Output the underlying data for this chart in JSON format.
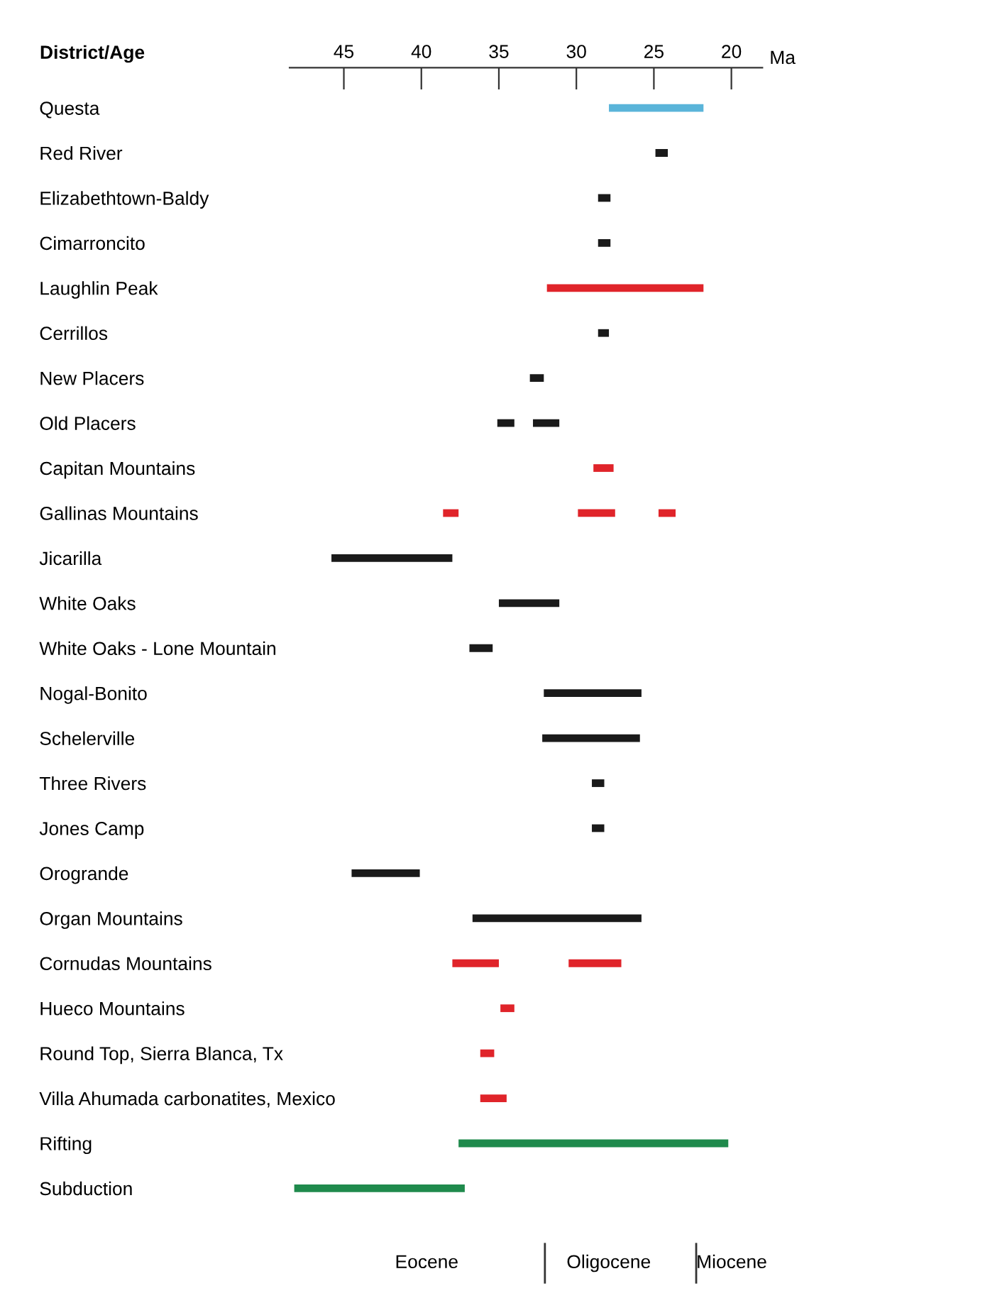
{
  "chart_data": {
    "type": "bar",
    "orientation": "horizontal",
    "title": "District/Age",
    "xlabel": "Ma",
    "categories": [
      "Questa",
      "Red River",
      "Elizabethtown-Baldy",
      "Cimarroncito",
      "Laughlin Peak",
      "Cerrillos",
      "New Placers",
      "Old Placers",
      "Capitan Mountains",
      "Gallinas Mountains",
      "Jicarilla",
      "White Oaks",
      "White Oaks - Lone Mountain",
      "Nogal-Bonito",
      "Schelerville",
      "Three Rivers",
      "Jones Camp",
      "Orogrande",
      "Organ Mountains",
      "Cornudas Mountains",
      "Hueco Mountains",
      "Round Top, Sierra Blanca, Tx",
      "Villa Ahumada carbonatites, Mexico",
      "Rifting",
      "Subduction"
    ],
    "series": [
      {
        "base": [
          21.8,
          24.1,
          27.8,
          27.8,
          21.8,
          27.9,
          32.1,
          34.0,
          27.6,
          37.6,
          38.0,
          31.1,
          35.4,
          25.8,
          25.9,
          28.2,
          28.2,
          40.1,
          25.8,
          35.0,
          34.0,
          35.3,
          34.5,
          20.2,
          37.2
        ],
        "values": [
          6.1,
          0.8,
          0.8,
          0.8,
          10.1,
          0.7,
          0.9,
          1.1,
          1.3,
          1.0,
          7.8,
          3.9,
          1.5,
          6.3,
          6.3,
          0.8,
          0.8,
          4.4,
          10.9,
          3.0,
          0.9,
          0.9,
          1.7,
          17.4,
          11.0
        ],
        "colors": [
          "#5ab4d9",
          "#1a1a1a",
          "#1a1a1a",
          "#1a1a1a",
          "#e0242a",
          "#1a1a1a",
          "#1a1a1a",
          "#1a1a1a",
          "#e0242a",
          "#e0242a",
          "#1a1a1a",
          "#1a1a1a",
          "#1a1a1a",
          "#1a1a1a",
          "#1a1a1a",
          "#1a1a1a",
          "#1a1a1a",
          "#1a1a1a",
          "#1a1a1a",
          "#e0242a",
          "#e0242a",
          "#e0242a",
          "#e0242a",
          "#1f8a4c",
          "#1f8a4c"
        ]
      },
      {
        "base": [
          null,
          null,
          null,
          null,
          null,
          null,
          null,
          31.1,
          null,
          27.5,
          null,
          null,
          null,
          null,
          null,
          null,
          null,
          null,
          null,
          27.1,
          null,
          null,
          null,
          null,
          null
        ],
        "values": [
          null,
          null,
          null,
          null,
          null,
          null,
          null,
          1.7,
          null,
          2.4,
          null,
          null,
          null,
          null,
          null,
          null,
          null,
          null,
          null,
          3.4,
          null,
          null,
          null,
          null,
          null
        ],
        "colors": [
          null,
          null,
          null,
          null,
          null,
          null,
          null,
          "#1a1a1a",
          null,
          "#e0242a",
          null,
          null,
          null,
          null,
          null,
          null,
          null,
          null,
          null,
          "#e0242a",
          null,
          null,
          null,
          null,
          null
        ]
      },
      {
        "base": [
          null,
          null,
          null,
          null,
          null,
          null,
          null,
          null,
          null,
          23.6,
          null,
          null,
          null,
          null,
          null,
          null,
          null,
          null,
          null,
          null,
          null,
          null,
          null,
          null,
          null
        ],
        "values": [
          null,
          null,
          null,
          null,
          null,
          null,
          null,
          null,
          null,
          1.1,
          null,
          null,
          null,
          null,
          null,
          null,
          null,
          null,
          null,
          null,
          null,
          null,
          null,
          null,
          null
        ],
        "colors": [
          null,
          null,
          null,
          null,
          null,
          null,
          null,
          null,
          null,
          "#e0242a",
          null,
          null,
          null,
          null,
          null,
          null,
          null,
          null,
          null,
          null,
          null,
          null,
          null,
          null,
          null
        ]
      }
    ],
    "xlim": [
      48.5,
      18
    ],
    "xticks": [
      45,
      40,
      35,
      30,
      25,
      20
    ],
    "grid": false,
    "annotations": [
      "Eocene",
      "Oligocene",
      "Miocene"
    ]
  }
}
